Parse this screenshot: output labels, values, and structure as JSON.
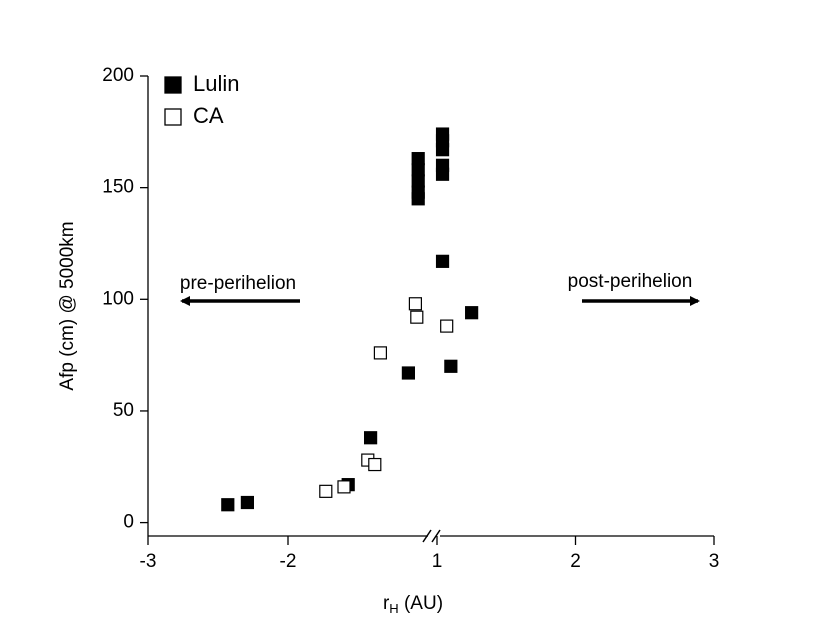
{
  "chart_data": {
    "type": "scatter",
    "y_label": "Afp  (cm) @ 5000km",
    "x_label": {
      "main": "r",
      "sub": "H",
      "unit": " (AU)"
    },
    "annotations": [
      "pre-perihelion",
      "post-perihelion"
    ],
    "xlim": [
      -3,
      3
    ],
    "xbreak": [
      -1,
      1
    ],
    "xticks": [
      -3,
      -2,
      1,
      2,
      3
    ],
    "ylim": [
      -6,
      200
    ],
    "yticks": [
      0,
      50,
      100,
      150,
      200
    ],
    "legend": "top-left",
    "series": [
      {
        "name": "Lulin",
        "color": "#000000",
        "filled": true,
        "x": [
          -2.43,
          -2.29,
          -1.57,
          -1.41,
          -1.14,
          -1.07,
          -1.07,
          -1.07,
          -1.07,
          -1.07,
          1.04,
          1.04,
          1.04,
          1.04,
          1.04,
          1.04,
          1.1,
          1.25
        ],
        "values": [
          8,
          9,
          17,
          38,
          67,
          163,
          158,
          153,
          148,
          145,
          174,
          171,
          167,
          160,
          156,
          117,
          70,
          94
        ]
      },
      {
        "name": "CA",
        "color": "#000000",
        "filled": false,
        "x": [
          -1.73,
          -1.6,
          -1.43,
          -1.38,
          -1.34,
          -1.09,
          -1.08,
          1.07
        ],
        "values": [
          14,
          16,
          28,
          26,
          76,
          98,
          92,
          88
        ]
      }
    ]
  }
}
